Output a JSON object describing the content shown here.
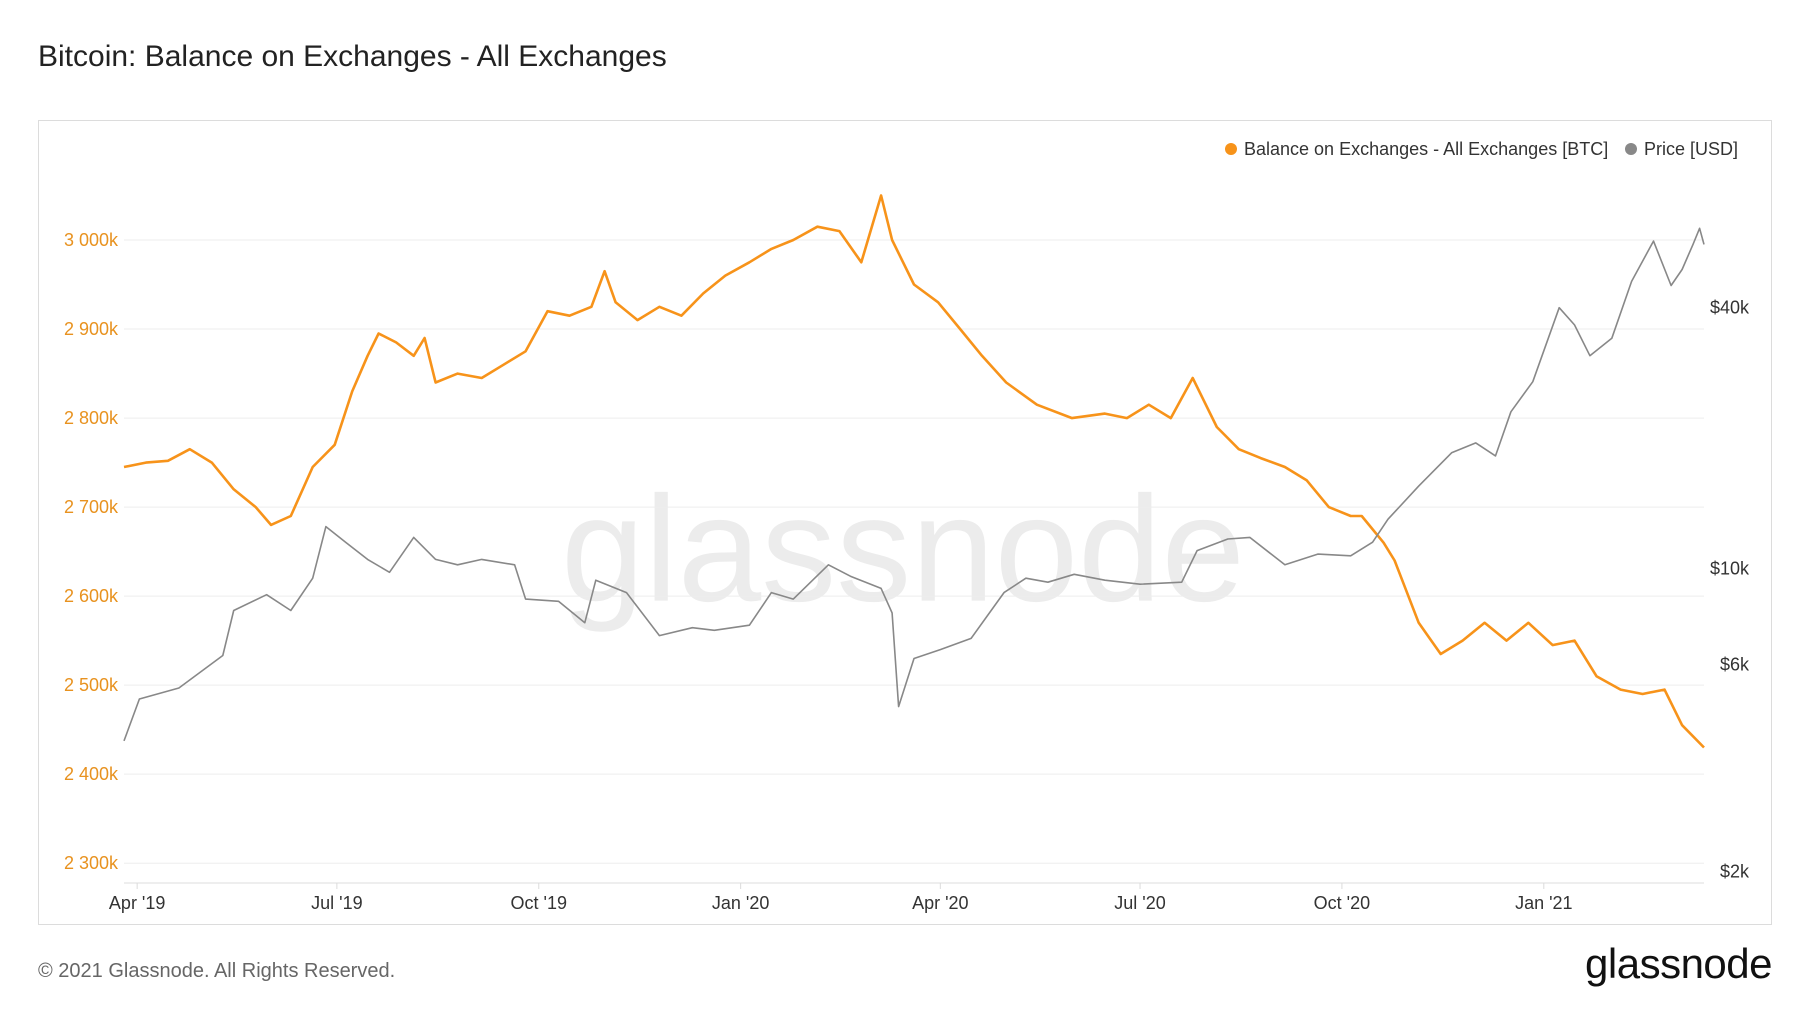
{
  "page": {
    "title": "Bitcoin: Balance on Exchanges - All Exchanges",
    "copyright": "© 2021 Glassnode. All Rights Reserved.",
    "logo_text": "glassnode",
    "watermark_text": "glassnode"
  },
  "colors": {
    "balance": "#F7931A",
    "price": "#888888",
    "grid": "#ededed",
    "left_axis_text": "#E8921F",
    "right_axis_text": "#333333",
    "axis_line": "#dcdcdc"
  },
  "chart_data": {
    "type": "line",
    "title": "Bitcoin: Balance on Exchanges - All Exchanges",
    "x_range": [
      "2019-03-26",
      "2021-03-15"
    ],
    "x_ticks": [
      {
        "date": "2019-04-01",
        "label": "Apr '19"
      },
      {
        "date": "2019-07-01",
        "label": "Jul '19"
      },
      {
        "date": "2019-10-01",
        "label": "Oct '19"
      },
      {
        "date": "2020-01-01",
        "label": "Jan '20"
      },
      {
        "date": "2020-04-01",
        "label": "Apr '20"
      },
      {
        "date": "2020-07-01",
        "label": "Jul '20"
      },
      {
        "date": "2020-10-01",
        "label": "Oct '20"
      },
      {
        "date": "2021-01-01",
        "label": "Jan '21"
      }
    ],
    "left_axis": {
      "ylim": [
        2280000,
        3100000
      ],
      "ticks": [
        {
          "value": 2300000,
          "label": "2 300k"
        },
        {
          "value": 2400000,
          "label": "2 400k"
        },
        {
          "value": 2500000,
          "label": "2 500k"
        },
        {
          "value": 2600000,
          "label": "2 600k"
        },
        {
          "value": 2700000,
          "label": "2 700k"
        },
        {
          "value": 2800000,
          "label": "2 800k"
        },
        {
          "value": 2900000,
          "label": "2 900k"
        },
        {
          "value": 3000000,
          "label": "3 000k"
        }
      ]
    },
    "right_axis": {
      "scale": "log",
      "ylim": [
        1900,
        92000
      ],
      "ticks": [
        {
          "value": 2000,
          "label": "$2k"
        },
        {
          "value": 6000,
          "label": "$6k"
        },
        {
          "value": 10000,
          "label": "$10k"
        },
        {
          "value": 40000,
          "label": "$40k"
        }
      ]
    },
    "legend": {
      "position": "top-right",
      "entries": [
        {
          "name": "Balance on Exchanges - All Exchanges [BTC]",
          "color": "#F7931A"
        },
        {
          "name": "Price [USD]",
          "color": "#888888"
        }
      ]
    },
    "series": [
      {
        "name": "Balance on Exchanges - All Exchanges [BTC]",
        "axis": "left",
        "points": [
          [
            "2019-03-26",
            2745000
          ],
          [
            "2019-04-05",
            2750000
          ],
          [
            "2019-04-15",
            2752000
          ],
          [
            "2019-04-25",
            2765000
          ],
          [
            "2019-05-05",
            2750000
          ],
          [
            "2019-05-15",
            2720000
          ],
          [
            "2019-05-25",
            2700000
          ],
          [
            "2019-06-01",
            2680000
          ],
          [
            "2019-06-10",
            2690000
          ],
          [
            "2019-06-20",
            2745000
          ],
          [
            "2019-06-30",
            2770000
          ],
          [
            "2019-07-08",
            2830000
          ],
          [
            "2019-07-15",
            2870000
          ],
          [
            "2019-07-20",
            2895000
          ],
          [
            "2019-07-28",
            2885000
          ],
          [
            "2019-08-05",
            2870000
          ],
          [
            "2019-08-10",
            2890000
          ],
          [
            "2019-08-15",
            2840000
          ],
          [
            "2019-08-25",
            2850000
          ],
          [
            "2019-09-05",
            2845000
          ],
          [
            "2019-09-15",
            2860000
          ],
          [
            "2019-09-25",
            2875000
          ],
          [
            "2019-10-05",
            2920000
          ],
          [
            "2019-10-15",
            2915000
          ],
          [
            "2019-10-25",
            2925000
          ],
          [
            "2019-10-31",
            2965000
          ],
          [
            "2019-11-05",
            2930000
          ],
          [
            "2019-11-15",
            2910000
          ],
          [
            "2019-11-25",
            2925000
          ],
          [
            "2019-12-05",
            2915000
          ],
          [
            "2019-12-15",
            2940000
          ],
          [
            "2019-12-25",
            2960000
          ],
          [
            "2020-01-05",
            2975000
          ],
          [
            "2020-01-15",
            2990000
          ],
          [
            "2020-01-25",
            3000000
          ],
          [
            "2020-02-05",
            3015000
          ],
          [
            "2020-02-15",
            3010000
          ],
          [
            "2020-02-25",
            2975000
          ],
          [
            "2020-03-05",
            3050000
          ],
          [
            "2020-03-10",
            3000000
          ],
          [
            "2020-03-20",
            2950000
          ],
          [
            "2020-03-31",
            2930000
          ],
          [
            "2020-04-10",
            2900000
          ],
          [
            "2020-04-20",
            2870000
          ],
          [
            "2020-05-01",
            2840000
          ],
          [
            "2020-05-15",
            2815000
          ],
          [
            "2020-05-31",
            2800000
          ],
          [
            "2020-06-15",
            2805000
          ],
          [
            "2020-06-25",
            2800000
          ],
          [
            "2020-07-05",
            2815000
          ],
          [
            "2020-07-15",
            2800000
          ],
          [
            "2020-07-25",
            2845000
          ],
          [
            "2020-08-05",
            2790000
          ],
          [
            "2020-08-15",
            2765000
          ],
          [
            "2020-08-25",
            2755000
          ],
          [
            "2020-09-05",
            2745000
          ],
          [
            "2020-09-15",
            2730000
          ],
          [
            "2020-09-25",
            2700000
          ],
          [
            "2020-10-05",
            2690000
          ],
          [
            "2020-10-10",
            2690000
          ],
          [
            "2020-10-20",
            2660000
          ],
          [
            "2020-10-25",
            2640000
          ],
          [
            "2020-11-05",
            2570000
          ],
          [
            "2020-11-15",
            2535000
          ],
          [
            "2020-11-25",
            2550000
          ],
          [
            "2020-12-05",
            2570000
          ],
          [
            "2020-12-15",
            2550000
          ],
          [
            "2020-12-25",
            2570000
          ],
          [
            "2021-01-05",
            2545000
          ],
          [
            "2021-01-15",
            2550000
          ],
          [
            "2021-01-25",
            2510000
          ],
          [
            "2021-02-05",
            2495000
          ],
          [
            "2021-02-15",
            2490000
          ],
          [
            "2021-02-25",
            2495000
          ],
          [
            "2021-03-05",
            2455000
          ],
          [
            "2021-03-15",
            2430000
          ]
        ]
      },
      {
        "name": "Price [USD]",
        "axis": "right",
        "points": [
          [
            "2019-03-26",
            4000
          ],
          [
            "2019-04-02",
            5000
          ],
          [
            "2019-04-20",
            5300
          ],
          [
            "2019-05-10",
            6300
          ],
          [
            "2019-05-15",
            8000
          ],
          [
            "2019-05-30",
            8700
          ],
          [
            "2019-06-10",
            8000
          ],
          [
            "2019-06-20",
            9500
          ],
          [
            "2019-06-26",
            12500
          ],
          [
            "2019-07-05",
            11500
          ],
          [
            "2019-07-15",
            10500
          ],
          [
            "2019-07-25",
            9800
          ],
          [
            "2019-08-05",
            11800
          ],
          [
            "2019-08-15",
            10500
          ],
          [
            "2019-08-25",
            10200
          ],
          [
            "2019-09-05",
            10500
          ],
          [
            "2019-09-20",
            10200
          ],
          [
            "2019-09-25",
            8500
          ],
          [
            "2019-10-10",
            8400
          ],
          [
            "2019-10-22",
            7500
          ],
          [
            "2019-10-27",
            9400
          ],
          [
            "2019-11-10",
            8800
          ],
          [
            "2019-11-25",
            7000
          ],
          [
            "2019-12-10",
            7300
          ],
          [
            "2019-12-20",
            7200
          ],
          [
            "2020-01-05",
            7400
          ],
          [
            "2020-01-15",
            8800
          ],
          [
            "2020-01-25",
            8500
          ],
          [
            "2020-02-10",
            10200
          ],
          [
            "2020-02-20",
            9600
          ],
          [
            "2020-03-05",
            9000
          ],
          [
            "2020-03-10",
            7900
          ],
          [
            "2020-03-13",
            4800
          ],
          [
            "2020-03-20",
            6200
          ],
          [
            "2020-04-01",
            6500
          ],
          [
            "2020-04-15",
            6900
          ],
          [
            "2020-04-30",
            8800
          ],
          [
            "2020-05-10",
            9500
          ],
          [
            "2020-05-20",
            9300
          ],
          [
            "2020-06-01",
            9700
          ],
          [
            "2020-06-15",
            9400
          ],
          [
            "2020-07-01",
            9200
          ],
          [
            "2020-07-20",
            9300
          ],
          [
            "2020-07-27",
            11000
          ],
          [
            "2020-08-10",
            11700
          ],
          [
            "2020-08-20",
            11800
          ],
          [
            "2020-09-05",
            10200
          ],
          [
            "2020-09-20",
            10800
          ],
          [
            "2020-10-05",
            10700
          ],
          [
            "2020-10-15",
            11500
          ],
          [
            "2020-10-22",
            13000
          ],
          [
            "2020-11-05",
            15500
          ],
          [
            "2020-11-20",
            18500
          ],
          [
            "2020-12-01",
            19500
          ],
          [
            "2020-12-10",
            18200
          ],
          [
            "2020-12-17",
            23000
          ],
          [
            "2020-12-27",
            27000
          ],
          [
            "2021-01-08",
            40000
          ],
          [
            "2021-01-15",
            36500
          ],
          [
            "2021-01-22",
            31000
          ],
          [
            "2021-02-01",
            34000
          ],
          [
            "2021-02-10",
            46000
          ],
          [
            "2021-02-20",
            57000
          ],
          [
            "2021-02-28",
            45000
          ],
          [
            "2021-03-05",
            49000
          ],
          [
            "2021-03-10",
            56000
          ],
          [
            "2021-03-13",
            61000
          ],
          [
            "2021-03-15",
            56000
          ]
        ]
      }
    ]
  }
}
